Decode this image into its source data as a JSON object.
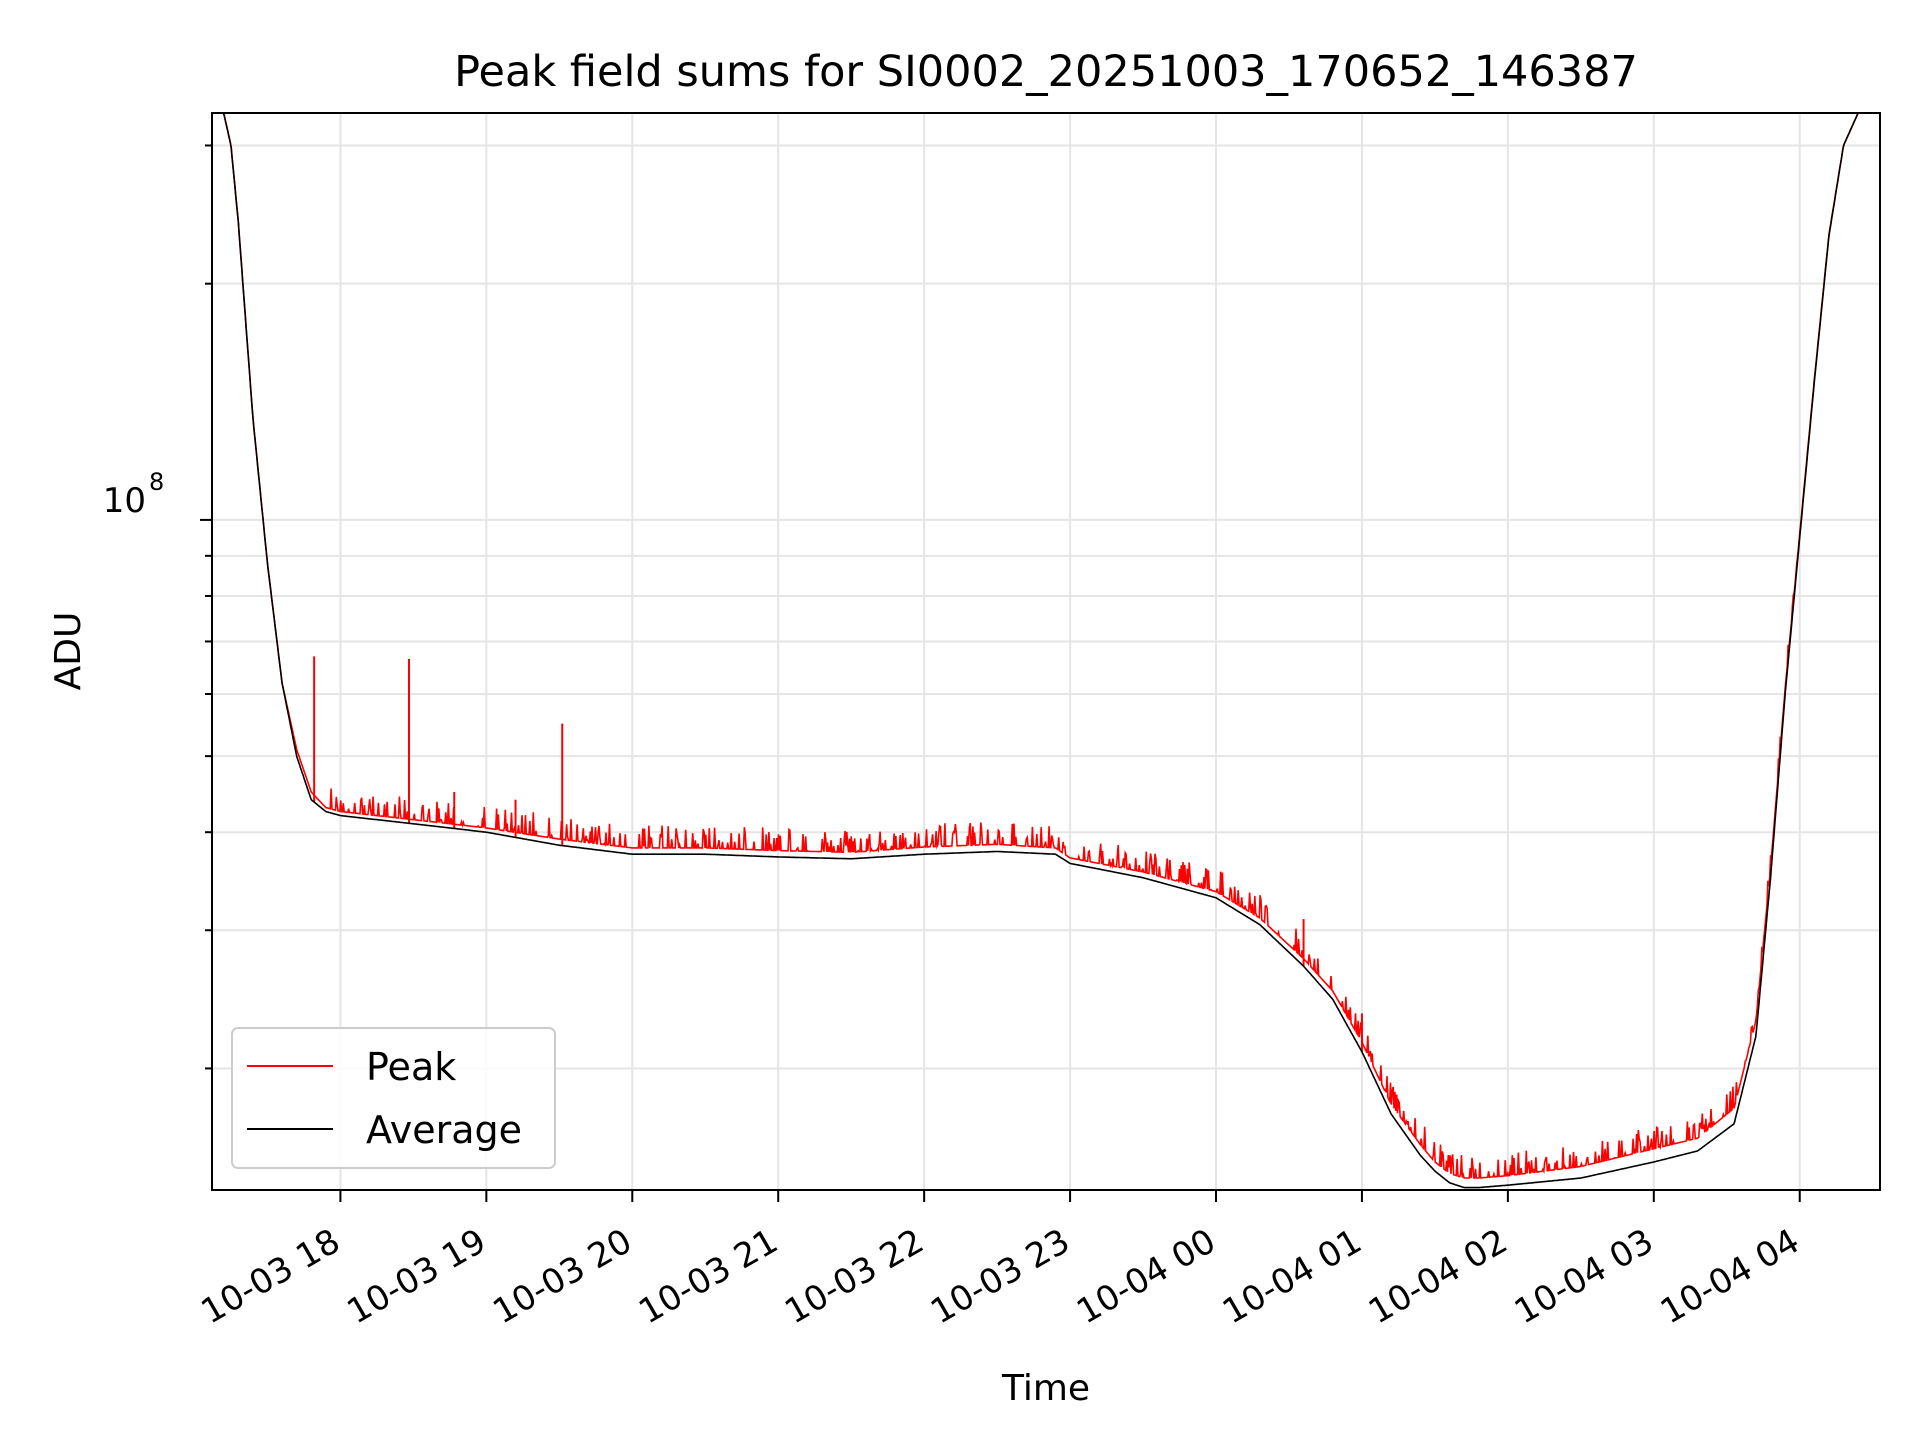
{
  "chart_data": {
    "type": "line",
    "title": "Peak field sums for SI0002_20251003_170652_146387",
    "xlabel": "Time",
    "ylabel": "ADU",
    "y_scale": "log",
    "y_tick_label": {
      "base": "10",
      "exp": "8",
      "value": 100000000
    },
    "ylim": [
      14000000,
      330000000
    ],
    "xlim_hours": [
      17.12,
      28.55
    ],
    "x_tick_labels": [
      "10-03 18",
      "10-03 19",
      "10-03 20",
      "10-03 21",
      "10-03 22",
      "10-03 23",
      "10-04 00",
      "10-04 01",
      "10-04 02",
      "10-04 03",
      "10-04 04"
    ],
    "x_tick_hours": [
      18,
      19,
      20,
      21,
      22,
      23,
      24,
      25,
      26,
      27,
      28
    ],
    "grid": true,
    "legend": {
      "location": "lower-left",
      "entries": [
        "Peak",
        "Average"
      ]
    },
    "series": [
      {
        "name": "Average",
        "color": "#000000",
        "x_hours": [
          17.12,
          17.2,
          17.25,
          17.3,
          17.35,
          17.4,
          17.5,
          17.6,
          17.7,
          17.8,
          17.9,
          18.0,
          18.5,
          19.0,
          19.5,
          20.0,
          20.5,
          21.0,
          21.5,
          22.0,
          22.5,
          22.9,
          23.0,
          23.5,
          24.0,
          24.3,
          24.6,
          24.8,
          25.0,
          25.2,
          25.4,
          25.5,
          25.6,
          25.7,
          25.8,
          26.0,
          26.5,
          27.0,
          27.3,
          27.55,
          27.7,
          27.8,
          27.9,
          28.0,
          28.1,
          28.2,
          28.3,
          28.4,
          28.55
        ],
        "values": [
          330000000,
          330000000,
          300000000,
          240000000,
          180000000,
          135000000,
          88000000,
          62000000,
          50000000,
          44000000,
          42500000,
          42000000,
          41000000,
          40000000,
          38500000,
          37500000,
          37500000,
          37200000,
          37000000,
          37500000,
          37800000,
          37500000,
          36500000,
          35000000,
          33000000,
          30500000,
          27000000,
          24500000,
          21000000,
          17500000,
          15500000,
          14800000,
          14300000,
          14100000,
          14100000,
          14200000,
          14500000,
          15200000,
          15700000,
          17000000,
          22000000,
          35000000,
          60000000,
          95000000,
          150000000,
          230000000,
          300000000,
          330000000,
          330000000
        ]
      },
      {
        "name": "Peak",
        "color": "#ff0000",
        "x_hours": [
          17.12,
          17.2,
          17.25,
          17.3,
          17.35,
          17.4,
          17.5,
          17.6,
          17.7,
          17.8,
          17.9,
          18.0,
          18.5,
          19.0,
          19.5,
          20.0,
          20.5,
          21.0,
          21.5,
          22.0,
          22.5,
          22.9,
          23.0,
          23.5,
          24.0,
          24.3,
          24.6,
          24.8,
          25.0,
          25.2,
          25.4,
          25.5,
          25.6,
          25.7,
          25.8,
          26.0,
          26.5,
          27.0,
          27.3,
          27.55,
          27.7,
          27.8,
          27.9,
          28.0,
          28.1,
          28.2,
          28.3,
          28.4,
          28.55
        ],
        "values": [
          330000000,
          330000000,
          300000000,
          240000000,
          180000000,
          135000000,
          88000000,
          62000000,
          51000000,
          45000000,
          43000000,
          42500000,
          41500000,
          40500000,
          39200000,
          38200000,
          38200000,
          37900000,
          37700000,
          38300000,
          38600000,
          38200000,
          37100000,
          35600000,
          33600000,
          31100000,
          27600000,
          25100000,
          21600000,
          18000000,
          16000000,
          15200000,
          14700000,
          14500000,
          14500000,
          14600000,
          15000000,
          15800000,
          16300000,
          17800000,
          23000000,
          36000000,
          61000000,
          96000000,
          151000000,
          231000000,
          300000000,
          330000000,
          330000000
        ],
        "spikes": [
          {
            "hour": 17.82,
            "value": 67000000
          },
          {
            "hour": 18.47,
            "value": 66500000
          },
          {
            "hour": 19.52,
            "value": 55000000
          },
          {
            "hour": 19.2,
            "value": 44000000
          },
          {
            "hour": 18.78,
            "value": 45000000
          },
          {
            "hour": 24.6,
            "value": 31000000
          },
          {
            "hour": 25.0,
            "value": 23500000
          }
        ]
      }
    ]
  }
}
